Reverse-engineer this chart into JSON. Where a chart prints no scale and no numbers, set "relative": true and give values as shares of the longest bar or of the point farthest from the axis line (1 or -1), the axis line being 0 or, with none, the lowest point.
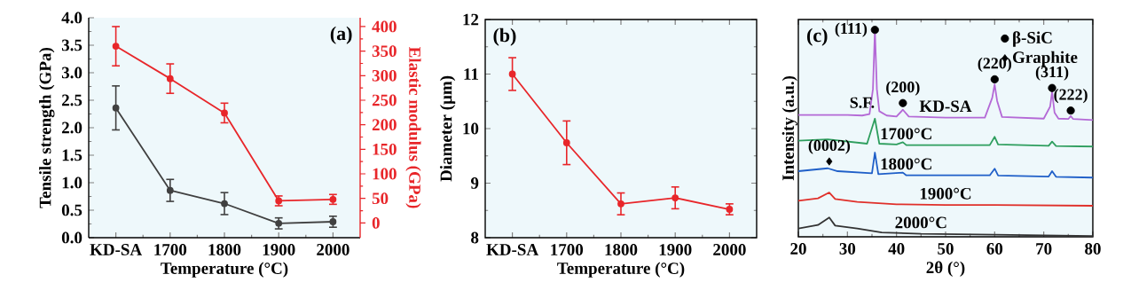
{
  "chart_data": [
    {
      "type": "line",
      "annotations": [
        "(a)"
      ],
      "categories": [
        "KD-SA",
        "1700",
        "1800",
        "1900",
        "2000"
      ],
      "xlabel": "Temperature (°C)",
      "ylabel": "Tensile strength (GPa)",
      "y2label": "Elastic modulus (GPa)",
      "ylim": [
        0,
        4
      ],
      "yticks": [
        {
          "value": 0,
          "label": "0.0"
        },
        {
          "value": 0.5,
          "label": "0.5"
        },
        {
          "value": 1,
          "label": "1.0"
        },
        {
          "value": 1.5,
          "label": "1.5"
        },
        {
          "value": 2,
          "label": "2.0"
        },
        {
          "value": 2.5,
          "label": "2.5"
        },
        {
          "value": 3,
          "label": "3.0"
        },
        {
          "value": 3.5,
          "label": "3.5"
        },
        {
          "value": 4,
          "label": "4.0"
        }
      ],
      "y2lim": [
        -30,
        418
      ],
      "y2ticks": [
        0,
        50,
        100,
        150,
        200,
        250,
        300,
        350,
        400
      ],
      "marker": "circle",
      "series": [
        {
          "color": "#404040",
          "values": [
            2.36,
            0.86,
            0.62,
            0.26,
            0.29
          ],
          "errors": [
            0.4,
            0.2,
            0.2,
            0.1,
            0.1
          ]
        },
        {
          "color": "#e8262a",
          "axis": "y2",
          "values": [
            360,
            294,
            224,
            45,
            48
          ],
          "errors": [
            40,
            30,
            20,
            10,
            10
          ]
        }
      ]
    },
    {
      "type": "line",
      "annotations": [
        "(b)"
      ],
      "categories": [
        "KD-SA",
        "1700",
        "1800",
        "1900",
        "2000"
      ],
      "xlabel": "Temperature (°C)",
      "ylabel": "Diameter (μm)",
      "ylim": [
        8,
        12
      ],
      "yticks": [
        8,
        9,
        10,
        11,
        12
      ],
      "marker": "circle",
      "series": [
        {
          "color": "#e8262a",
          "values": [
            11.0,
            9.74,
            8.62,
            8.73,
            8.52
          ],
          "errors": [
            0.3,
            0.4,
            0.2,
            0.2,
            0.1
          ]
        }
      ]
    },
    {
      "type": "line",
      "relative": true,
      "tick_labels": "x",
      "legend": "top right",
      "xlabel": "2θ (°)",
      "ylabel": "Intensity (a.u.)",
      "xlim": [
        20,
        80
      ],
      "xticks": [
        20,
        30,
        40,
        50,
        60,
        70,
        80
      ],
      "annotations": [
        "(c)",
        {
          "text": "(111)",
          "x": 35.6,
          "y": 1.0
        },
        {
          "text": "S.F.",
          "x": 33,
          "y": 0.586
        },
        {
          "text": "(200)",
          "x": 41.3,
          "y": 0.646
        },
        {
          "text": "(220)",
          "x": 60,
          "y": 0.761
        },
        {
          "text": "(311)",
          "x": 71.7,
          "y": 0.719
        },
        {
          "text": "(222)",
          "x": 75.5,
          "y": 0.61
        },
        {
          "text": "(0002)",
          "x": 26.3,
          "y": 0.364
        }
      ],
      "series": [
        {
          "name": "KD-SA",
          "color": "#b469d6",
          "x": [
            20,
            30,
            33,
            34.5,
            35.2,
            35.6,
            36.0,
            36.5,
            38,
            40,
            41.3,
            42.5,
            50,
            58,
            59.5,
            60,
            60.5,
            61.5,
            70,
            71.3,
            71.7,
            72.2,
            73,
            75,
            75.5,
            76,
            80
          ],
          "values": [
            0.589,
            0.589,
            0.586,
            0.593,
            0.714,
            1.0,
            0.714,
            0.607,
            0.586,
            0.581,
            0.614,
            0.581,
            0.576,
            0.576,
            0.671,
            0.736,
            0.657,
            0.579,
            0.571,
            0.629,
            0.7,
            0.6,
            0.571,
            0.569,
            0.583,
            0.569,
            0.564
          ]
        },
        {
          "name": "1700°C",
          "color": "#2e9e5e",
          "x": [
            20,
            26,
            34,
            35.6,
            36.5,
            40,
            41.3,
            42,
            59,
            60,
            60.7,
            71,
            71.7,
            72.5,
            80
          ],
          "values": [
            0.464,
            0.471,
            0.45,
            0.571,
            0.45,
            0.446,
            0.457,
            0.443,
            0.443,
            0.483,
            0.446,
            0.44,
            0.46,
            0.439,
            0.436
          ]
        },
        {
          "name": "1800°C",
          "color": "#1f5fc8",
          "x": [
            20,
            26,
            28,
            35,
            35.6,
            36.3,
            41.3,
            42,
            59,
            60,
            60.7,
            71,
            71.7,
            72.5,
            80
          ],
          "values": [
            0.317,
            0.331,
            0.317,
            0.307,
            0.407,
            0.303,
            0.31,
            0.297,
            0.297,
            0.329,
            0.296,
            0.291,
            0.317,
            0.29,
            0.286
          ]
        },
        {
          "name": "1900°C",
          "color": "#e0302a",
          "x": [
            20,
            24,
            26.3,
            27.5,
            32,
            40,
            50,
            60,
            80
          ],
          "values": [
            0.174,
            0.186,
            0.214,
            0.183,
            0.169,
            0.157,
            0.154,
            0.154,
            0.15
          ]
        },
        {
          "name": "2000°C",
          "color": "#333333",
          "x": [
            20,
            24,
            26.3,
            27.5,
            32,
            37,
            45,
            60,
            80
          ],
          "values": [
            0.04,
            0.057,
            0.093,
            0.054,
            0.04,
            0.021,
            0.014,
            0.01,
            0.004
          ]
        },
        {
          "name": "β-SiC",
          "type": "scatter",
          "marker": "circle",
          "color": "#000000",
          "x": [
            35.6,
            41.3,
            60,
            71.7,
            75.5
          ],
          "values": [
            1.0,
            0.646,
            0.761,
            0.719,
            0.61
          ]
        },
        {
          "name": "Graphite",
          "type": "scatter",
          "marker": "diamond",
          "color": "#000000",
          "x": [
            26.3
          ],
          "values": [
            0.364
          ]
        }
      ]
    }
  ]
}
